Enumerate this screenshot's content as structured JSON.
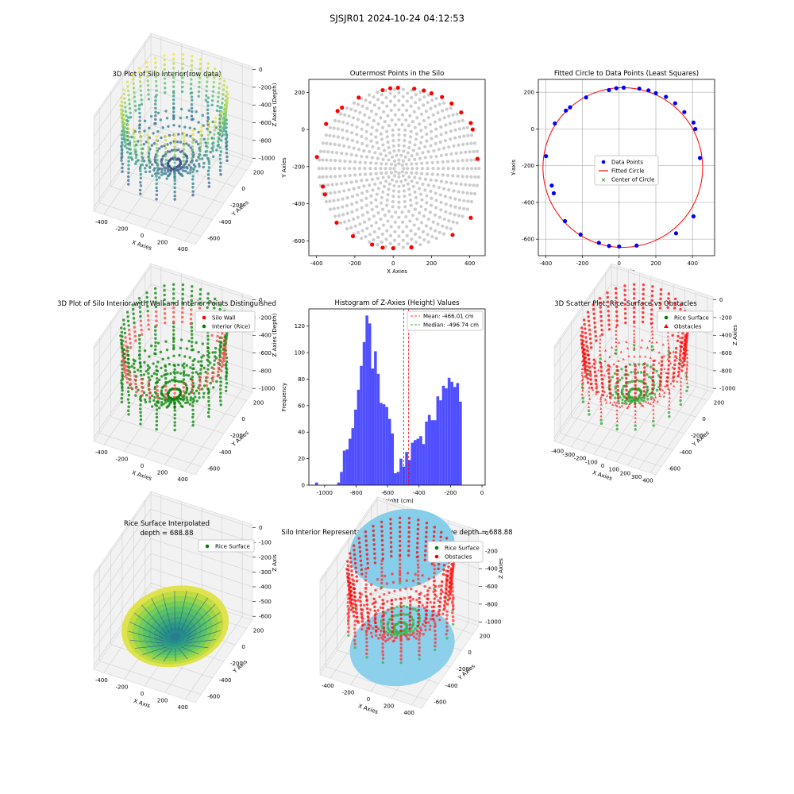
{
  "suptitle": "SJSJR01 2024-10-24 04:12:53",
  "chart_data": [
    {
      "id": "p3d_raw",
      "type": "scatter3d",
      "title": "3D Plot of Silo Interior(row data)",
      "xlabel": "X Axies",
      "ylabel": "Y Axies",
      "zlabel": "Z Axies (Depth)",
      "xticks": [
        -400,
        -200,
        0,
        200,
        400
      ],
      "yticks": [
        200,
        0,
        -200,
        -400,
        -600
      ],
      "zticks": [
        0,
        -200,
        -400,
        -600,
        -800,
        -1000
      ],
      "colormap": "viridis"
    },
    {
      "id": "outer",
      "type": "scatter",
      "title": "Outermost Points in the Silo",
      "xlabel": "X Axies",
      "ylabel": "Y Axies",
      "xlim": [
        -440,
        480
      ],
      "ylim": [
        -680,
        270
      ],
      "xticks": [
        -400,
        -200,
        0,
        200,
        400
      ],
      "yticks": [
        200,
        0,
        -200,
        -400,
        -600
      ],
      "grid": false,
      "interior_color": "#cccccc",
      "outer_color": "#ff0000",
      "outer_points": [
        [
          -398,
          -148
        ],
        [
          -367,
          -308
        ],
        [
          -356,
          -350
        ],
        [
          -350,
          30
        ],
        [
          -295,
          -502
        ],
        [
          -290,
          100
        ],
        [
          -267,
          118
        ],
        [
          -210,
          -575
        ],
        [
          -180,
          172
        ],
        [
          -110,
          -620
        ],
        [
          -55,
          212
        ],
        [
          -55,
          -637
        ],
        [
          -15,
          222
        ],
        [
          0,
          -640
        ],
        [
          25,
          225
        ],
        [
          95,
          -635
        ],
        [
          110,
          220
        ],
        [
          160,
          210
        ],
        [
          200,
          195
        ],
        [
          255,
          175
        ],
        [
          310,
          -568
        ],
        [
          305,
          140
        ],
        [
          355,
          92
        ],
        [
          405,
          35
        ],
        [
          405,
          -476
        ],
        [
          415,
          0
        ],
        [
          440,
          -158
        ]
      ],
      "interior_rings": [
        {
          "r": 25,
          "n": 8
        },
        {
          "r": 45,
          "n": 12
        },
        {
          "r": 70,
          "n": 18
        },
        {
          "r": 95,
          "n": 24
        },
        {
          "r": 122,
          "n": 28
        },
        {
          "r": 150,
          "n": 32
        },
        {
          "r": 178,
          "n": 36
        },
        {
          "r": 205,
          "n": 40
        },
        {
          "r": 232,
          "n": 42
        },
        {
          "r": 258,
          "n": 44
        },
        {
          "r": 284,
          "n": 46
        },
        {
          "r": 310,
          "n": 48
        },
        {
          "r": 335,
          "n": 50
        },
        {
          "r": 358,
          "n": 52
        },
        {
          "r": 380,
          "n": 54
        },
        {
          "r": 400,
          "n": 56
        },
        {
          "r": 418,
          "n": 58
        }
      ],
      "interior_center": [
        30,
        -210
      ]
    },
    {
      "id": "fitted",
      "type": "scatter",
      "title": "Fitted Circle to Data Points (Least Squares)",
      "xlabel": "X-axis",
      "ylabel": "Y-axis",
      "xlim": [
        -440,
        520
      ],
      "ylim": [
        -690,
        270
      ],
      "xticks": [
        -400,
        -200,
        0,
        200,
        400
      ],
      "yticks": [
        200,
        0,
        -200,
        -400,
        -600
      ],
      "grid": true,
      "legend": [
        "Data Points",
        "Fitted Circle",
        "Center of Circle"
      ],
      "legend_position": "center",
      "point_color": "#0000ff",
      "circle_color": "#ff0000",
      "center_color": "#008000",
      "circle_center": [
        20,
        -210
      ],
      "circle_radius": 435,
      "data_points": [
        [
          -398,
          -148
        ],
        [
          -367,
          -308
        ],
        [
          -356,
          -350
        ],
        [
          -350,
          30
        ],
        [
          -295,
          -502
        ],
        [
          -290,
          100
        ],
        [
          -267,
          118
        ],
        [
          -210,
          -575
        ],
        [
          -180,
          172
        ],
        [
          -110,
          -620
        ],
        [
          -55,
          212
        ],
        [
          -55,
          -637
        ],
        [
          -15,
          222
        ],
        [
          0,
          -640
        ],
        [
          25,
          225
        ],
        [
          95,
          -635
        ],
        [
          110,
          220
        ],
        [
          160,
          210
        ],
        [
          200,
          195
        ],
        [
          255,
          175
        ],
        [
          310,
          -568
        ],
        [
          305,
          140
        ],
        [
          355,
          92
        ],
        [
          405,
          35
        ],
        [
          405,
          -476
        ],
        [
          415,
          0
        ],
        [
          440,
          -158
        ]
      ]
    },
    {
      "id": "wall3d",
      "type": "scatter3d",
      "title": "3D Plot of Silo Interior with Wall and Interior Points Distinguished",
      "xlabel": "X Axies",
      "ylabel": "Y Axies",
      "zlabel": "Z Axies (Depth)",
      "xticks": [
        -400,
        -200,
        0,
        200,
        400
      ],
      "yticks": [
        200,
        0,
        -200,
        -400,
        -600
      ],
      "zticks": [
        0,
        -200,
        -400,
        -600,
        -800,
        -1000
      ],
      "legend": [
        "Silo Wall",
        "Interior (Rice)"
      ],
      "legend_colors": [
        "#ff0000",
        "#008000"
      ]
    },
    {
      "id": "hist",
      "type": "bar",
      "title": "Histogram of Z-Axies (Height) Values",
      "xlabel": "Height (cm)",
      "ylabel": "Frequency",
      "xlim": [
        -1100,
        20
      ],
      "ylim": [
        0,
        133
      ],
      "xticks": [
        -1000,
        -800,
        -600,
        -400,
        -200,
        0
      ],
      "yticks": [
        0,
        20,
        40,
        60,
        80,
        100,
        120
      ],
      "bin_width": 18,
      "bar_color": "#4f4fff",
      "bins": [
        [
          -1060,
          2
        ],
        [
          -920,
          2
        ],
        [
          -902,
          10
        ],
        [
          -884,
          26
        ],
        [
          -866,
          27
        ],
        [
          -848,
          35
        ],
        [
          -830,
          43
        ],
        [
          -812,
          57
        ],
        [
          -794,
          72
        ],
        [
          -776,
          90
        ],
        [
          -758,
          108
        ],
        [
          -740,
          128
        ],
        [
          -722,
          122
        ],
        [
          -704,
          88
        ],
        [
          -686,
          101
        ],
        [
          -668,
          84
        ],
        [
          -650,
          62
        ],
        [
          -632,
          61
        ],
        [
          -614,
          59
        ],
        [
          -596,
          50
        ],
        [
          -578,
          39
        ],
        [
          -560,
          9
        ],
        [
          -542,
          10
        ],
        [
          -524,
          20
        ],
        [
          -506,
          14
        ],
        [
          -488,
          25
        ],
        [
          -470,
          19
        ],
        [
          -452,
          32
        ],
        [
          -434,
          34
        ],
        [
          -416,
          35
        ],
        [
          -398,
          37
        ],
        [
          -380,
          31
        ],
        [
          -362,
          48
        ],
        [
          -344,
          53
        ],
        [
          -326,
          49
        ],
        [
          -308,
          49
        ],
        [
          -290,
          67
        ],
        [
          -272,
          64
        ],
        [
          -254,
          75
        ],
        [
          -236,
          73
        ],
        [
          -218,
          81
        ],
        [
          -200,
          78
        ],
        [
          -182,
          74
        ],
        [
          -164,
          77
        ],
        [
          -146,
          63
        ]
      ],
      "mean_label": "Mean: -466.01 cm",
      "median_label": "Median: -496.74 cm",
      "mean": -466.01,
      "median": -496.74,
      "legend_position": "top-right"
    },
    {
      "id": "rice3d",
      "type": "scatter3d",
      "title": "3D Scatter Plot: Rice Surface vs Obstacles",
      "xlabel": "X Axies",
      "ylabel": "Y Axies",
      "zlabel": "Z Axies",
      "xticks": [
        -400,
        -300,
        -200,
        -100,
        0,
        100,
        200,
        300,
        400
      ],
      "yticks": [
        200,
        0,
        -200,
        -400,
        -600
      ],
      "zticks": [
        0,
        -200,
        -400,
        -600,
        -800,
        -1000
      ],
      "legend": [
        "Rice Surface",
        "Obstacles"
      ],
      "legend_colors": [
        "#008000",
        "#ff0000"
      ]
    },
    {
      "id": "interp3d",
      "type": "surface3d",
      "title": "Rice Surface Interpolated",
      "subtitle": "depth = 688.88",
      "xlabel": "X Axis",
      "ylabel": "Y Axis",
      "zlabel": "Z Axis",
      "xticks": [
        -400,
        -200,
        0,
        200,
        400
      ],
      "yticks": [
        200,
        0,
        -200,
        -400,
        -600
      ],
      "zticks": [
        0,
        -100,
        -200,
        -300,
        -400,
        -500,
        -600
      ],
      "legend": [
        "Rice Surface"
      ],
      "legend_colors": [
        "#008000"
      ]
    },
    {
      "id": "cyl3d",
      "type": "scatter3d",
      "title": "Silo Interior Representation using weighted average depth = 688.88",
      "xlabel": "X Axies",
      "ylabel": "Y Axies",
      "zlabel": "Z Axies",
      "xticks": [
        -400,
        -200,
        0,
        200,
        400
      ],
      "yticks": [
        200,
        0,
        -200,
        -400,
        -600
      ],
      "zticks": [
        0,
        -200,
        -400,
        -600,
        -800,
        -1000
      ],
      "legend": [
        "Rice Surface",
        "Obstacles"
      ],
      "legend_colors": [
        "#008000",
        "#ff0000"
      ],
      "cylinder_color": "#87ceeb"
    }
  ]
}
